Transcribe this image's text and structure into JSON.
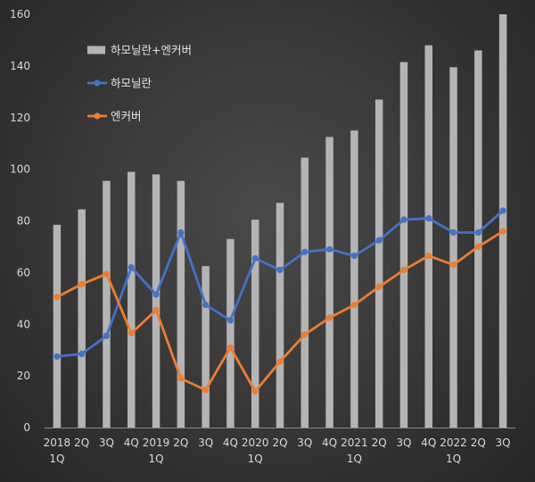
{
  "chart_data": {
    "type": "bar+line",
    "title": "",
    "xlabel": "",
    "ylabel": "",
    "ylim": [
      0,
      160
    ],
    "yticks": [
      0,
      20,
      40,
      60,
      80,
      100,
      120,
      140,
      160
    ],
    "grid": false,
    "legend_position": "top-left",
    "categories": [
      "2018 1Q",
      "2Q",
      "3Q",
      "4Q",
      "2019 1Q",
      "2Q",
      "3Q",
      "4Q",
      "2020 1Q",
      "2Q",
      "3Q",
      "4Q",
      "2021 1Q",
      "2Q",
      "3Q",
      "4Q",
      "2022 1Q",
      "2Q",
      "3Q"
    ],
    "x_tick_labels": [
      [
        "2018",
        "1Q"
      ],
      [
        "2Q"
      ],
      [
        "3Q"
      ],
      [
        "4Q"
      ],
      [
        "2019",
        "1Q"
      ],
      [
        "2Q"
      ],
      [
        "3Q"
      ],
      [
        "4Q"
      ],
      [
        "2020",
        "1Q"
      ],
      [
        "2Q"
      ],
      [
        "3Q"
      ],
      [
        "4Q"
      ],
      [
        "2021",
        "1Q"
      ],
      [
        "2Q"
      ],
      [
        "3Q"
      ],
      [
        "4Q"
      ],
      [
        "2022",
        "1Q"
      ],
      [
        "2Q"
      ],
      [
        "3Q"
      ]
    ],
    "series": [
      {
        "name": "하모닐란+엔커버",
        "type": "bar",
        "color": "#b4b4b4",
        "values": [
          78.5,
          84.5,
          95.5,
          99,
          98,
          95.5,
          62.5,
          73,
          80.5,
          87,
          104.5,
          112.5,
          115,
          127,
          141.5,
          148,
          139.5,
          146,
          160
        ]
      },
      {
        "name": "하모닐란",
        "type": "line",
        "color": "#4472c4",
        "values": [
          27.5,
          28.5,
          35.5,
          62,
          51.5,
          75.5,
          47.5,
          41.5,
          65.5,
          61,
          68,
          69,
          66.5,
          72.5,
          80.5,
          81,
          75.5,
          75.5,
          84
        ]
      },
      {
        "name": "엔커버",
        "type": "line",
        "color": "#ed7d31",
        "values": [
          50.5,
          55.5,
          59.5,
          36.5,
          45.5,
          19,
          14.5,
          31,
          14,
          25.5,
          36,
          42.5,
          47.5,
          54.5,
          61,
          66.5,
          63,
          70,
          76
        ]
      }
    ]
  }
}
